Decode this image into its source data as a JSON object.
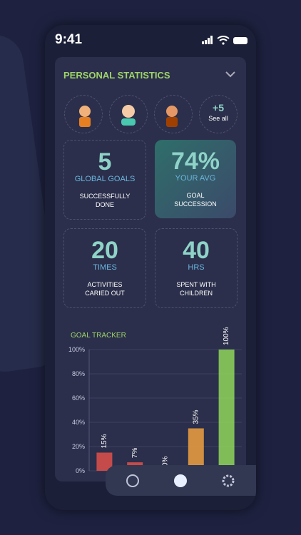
{
  "status": {
    "time": "9:41"
  },
  "header": {
    "title": "PERSONAL STATISTICS"
  },
  "avatars": {
    "more": "+5",
    "see_all": "See all"
  },
  "cards": [
    {
      "value": "5",
      "unit": "GLOBAL GOALS",
      "desc": "SUCCESSFULLY DONE"
    },
    {
      "value": "74%",
      "unit": "YOUR AVG",
      "desc": "GOAL SUCCESSION"
    },
    {
      "value": "20",
      "unit": "TIMES",
      "desc": "ACTIVITIES CARIED OUT"
    },
    {
      "value": "40",
      "unit": "HRS",
      "desc": "SPENT WITH CHILDREN"
    }
  ],
  "chart_data": {
    "type": "bar",
    "title": "GOAL TRACKER",
    "values": [
      15,
      7,
      0,
      35,
      100
    ],
    "value_labels": [
      "15%",
      "7%",
      "0%",
      "35%",
      "100%"
    ],
    "colors": [
      "#e0504a",
      "#e0504a",
      "#e0504a",
      "#f0a040",
      "#8fd65a"
    ],
    "ylim": [
      0,
      100
    ],
    "yticks": [
      {
        "value": 0,
        "label": "0%"
      },
      {
        "value": 20,
        "label": "20%"
      },
      {
        "value": 40,
        "label": "40%"
      },
      {
        "value": 60,
        "label": "60%"
      },
      {
        "value": 80,
        "label": "80%"
      },
      {
        "value": 100,
        "label": "100%"
      }
    ]
  }
}
